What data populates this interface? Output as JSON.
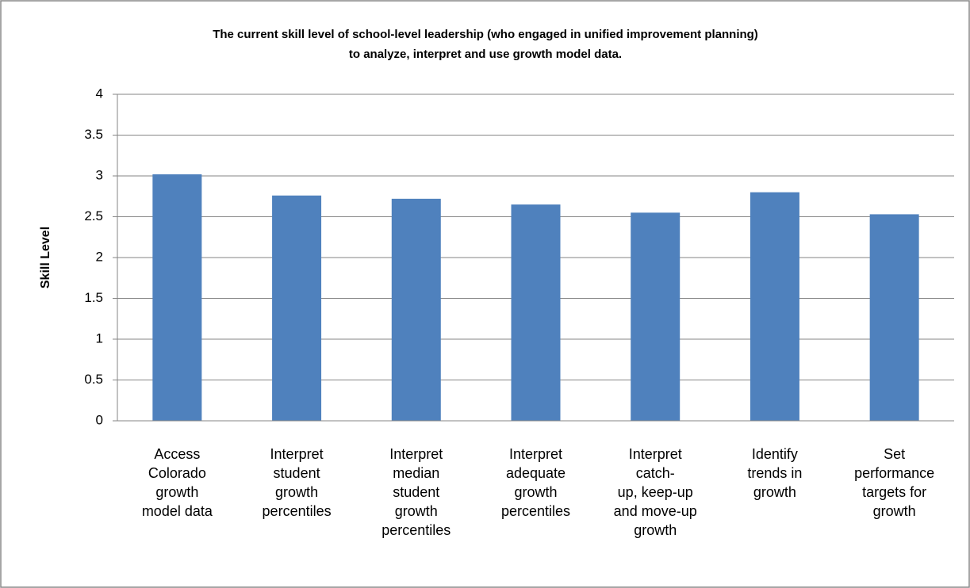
{
  "chart_data": {
    "type": "bar",
    "title": "The current skill level of school-level leadership (who engaged in unified improvement planning)\nto analyze, interpret and use growth model data.",
    "y_label": "Skill Level",
    "categories": [
      "Access\nColorado\ngrowth\nmodel data",
      "Interpret\nstudent\ngrowth\npercentiles",
      "Interpret\nmedian\nstudent\ngrowth\npercentiles",
      "Interpret\nadequate\ngrowth\npercentiles",
      "Interpret\ncatch-\nup, keep-up\nand move-up\ngrowth",
      "Identify\ntrends in\ngrowth",
      "Set\nperformance\ntargets for\ngrowth"
    ],
    "values": [
      3.02,
      2.76,
      2.72,
      2.65,
      2.55,
      2.8,
      2.53
    ],
    "color": "#4f81bd",
    "ylim": [
      0,
      4
    ],
    "yticks": [
      0,
      0.5,
      1,
      1.5,
      2,
      2.5,
      3,
      3.5,
      4
    ],
    "grid": true
  }
}
